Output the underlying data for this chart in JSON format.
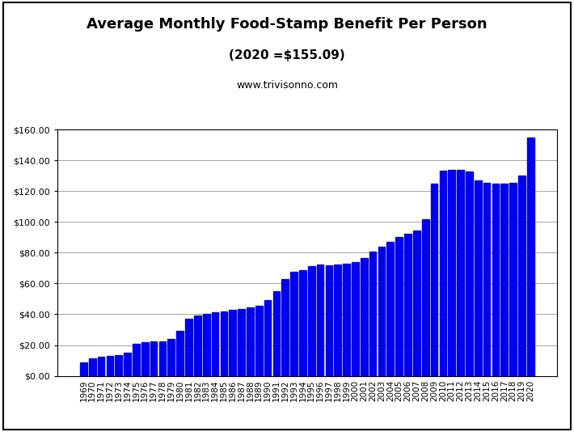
{
  "title": "Average Monthly Food-Stamp Benefit Per Person",
  "subtitle": "(2020 =$155.09)",
  "website": "www.trivisonno.com",
  "bar_color": "#0000EE",
  "background_color": "#FFFFFF",
  "years": [
    1969,
    1970,
    1971,
    1972,
    1973,
    1974,
    1975,
    1976,
    1977,
    1978,
    1979,
    1980,
    1981,
    1982,
    1983,
    1984,
    1985,
    1986,
    1987,
    1988,
    1989,
    1990,
    1991,
    1992,
    1993,
    1994,
    1995,
    1996,
    1997,
    1998,
    1999,
    2000,
    2001,
    2002,
    2003,
    2004,
    2005,
    2006,
    2007,
    2008,
    2009,
    2010,
    2011,
    2012,
    2013,
    2014,
    2015,
    2016,
    2017,
    2018,
    2019,
    2020
  ],
  "values": [
    8.5,
    11.5,
    12.5,
    13.0,
    13.5,
    15.0,
    21.0,
    22.0,
    22.5,
    22.5,
    24.0,
    29.0,
    37.0,
    39.0,
    40.5,
    41.5,
    42.0,
    43.0,
    43.5,
    44.5,
    45.5,
    49.0,
    55.0,
    63.0,
    67.5,
    68.5,
    71.5,
    72.5,
    72.0,
    72.5,
    73.0,
    74.0,
    76.5,
    80.5,
    84.0,
    87.0,
    90.0,
    92.5,
    94.5,
    101.5,
    125.0,
    133.5,
    134.0,
    134.0,
    133.0,
    127.0,
    125.5,
    125.0,
    125.0,
    125.5,
    130.0,
    155.09
  ],
  "ylim": [
    0,
    160
  ],
  "yticks": [
    0,
    20,
    40,
    60,
    80,
    100,
    120,
    140,
    160
  ],
  "title_fontsize": 13,
  "subtitle_fontsize": 11,
  "website_fontsize": 9
}
